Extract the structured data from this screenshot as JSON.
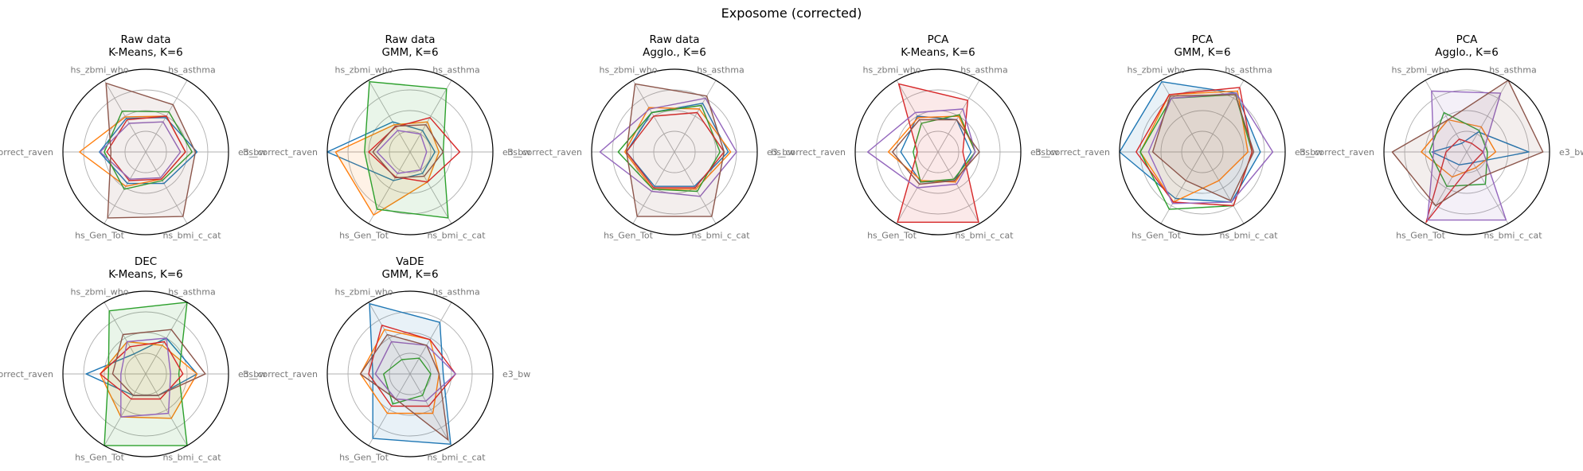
{
  "figure": {
    "title": "Exposome (corrected)",
    "variables": [
      "e3_bw",
      "hs_asthma",
      "hs_zbmi_who",
      "hs_correct_raven",
      "hs_Gen_Tot",
      "hs_bmi_c_cat"
    ],
    "series_colors": [
      "#1f77b4",
      "#ff7f0e",
      "#2ca02c",
      "#d62728",
      "#9467bd",
      "#8c564b"
    ],
    "radial_grid": [
      0.25,
      0.5,
      0.75
    ],
    "radial_limit": 1.0
  },
  "chart_data": [
    {
      "type": "radar",
      "title": "Raw data",
      "subtitle": "K-Means, K=6",
      "series": [
        {
          "values": [
            0.62,
            0.48,
            0.47,
            0.56,
            0.44,
            0.44
          ],
          "filled": false
        },
        {
          "values": [
            0.48,
            0.5,
            0.49,
            0.8,
            0.48,
            0.38
          ],
          "filled": false
        },
        {
          "values": [
            0.56,
            0.56,
            0.57,
            0.5,
            0.52,
            0.4
          ],
          "filled": false
        },
        {
          "values": [
            0.48,
            0.5,
            0.45,
            0.47,
            0.4,
            0.38
          ],
          "filled": false
        },
        {
          "values": [
            0.42,
            0.42,
            0.4,
            0.55,
            0.38,
            0.36
          ],
          "filled": false
        },
        {
          "values": [
            0.6,
            0.66,
            0.96,
            0.42,
            0.92,
            0.9
          ],
          "filled": true
        }
      ]
    },
    {
      "type": "radar",
      "title": "Raw data",
      "subtitle": "GMM, K=6",
      "series": [
        {
          "values": [
            0.3,
            0.3,
            0.42,
            1.0,
            0.4,
            0.3
          ],
          "filled": false
        },
        {
          "values": [
            0.35,
            0.42,
            0.38,
            0.9,
            0.88,
            0.42
          ],
          "filled": true
        },
        {
          "values": [
            0.4,
            0.88,
            0.98,
            0.55,
            0.8,
            0.92
          ],
          "filled": true
        },
        {
          "values": [
            0.6,
            0.48,
            0.35,
            0.5,
            0.35,
            0.42
          ],
          "filled": false
        },
        {
          "values": [
            0.2,
            0.25,
            0.3,
            0.4,
            0.3,
            0.25
          ],
          "filled": false
        },
        {
          "values": [
            0.4,
            0.38,
            0.36,
            0.45,
            0.36,
            0.34
          ],
          "filled": false
        }
      ]
    },
    {
      "type": "radar",
      "title": "Raw data",
      "subtitle": "Agglo., K=6",
      "series": [
        {
          "values": [
            0.65,
            0.68,
            0.55,
            0.58,
            0.48,
            0.48
          ],
          "filled": false
        },
        {
          "values": [
            0.68,
            0.6,
            0.62,
            0.6,
            0.52,
            0.52
          ],
          "filled": false
        },
        {
          "values": [
            0.55,
            0.65,
            0.55,
            0.68,
            0.52,
            0.55
          ],
          "filled": false
        },
        {
          "values": [
            0.6,
            0.55,
            0.5,
            0.58,
            0.5,
            0.5
          ],
          "filled": false
        },
        {
          "values": [
            0.75,
            0.75,
            0.6,
            0.9,
            0.55,
            0.62
          ],
          "filled": false
        },
        {
          "values": [
            0.6,
            0.78,
            0.95,
            0.58,
            0.9,
            0.9
          ],
          "filled": true
        }
      ]
    },
    {
      "type": "radar",
      "title": "PCA",
      "subtitle": "K-Means, K=6",
      "series": [
        {
          "values": [
            0.4,
            0.45,
            0.5,
            0.45,
            0.42,
            0.4
          ],
          "filled": false
        },
        {
          "values": [
            0.45,
            0.5,
            0.48,
            0.6,
            0.4,
            0.42
          ],
          "filled": false
        },
        {
          "values": [
            0.45,
            0.52,
            0.4,
            0.3,
            0.42,
            0.38
          ],
          "filled": false
        },
        {
          "values": [
            0.3,
            0.72,
            0.95,
            0.25,
            0.98,
            0.98
          ],
          "filled": true
        },
        {
          "values": [
            0.45,
            0.6,
            0.55,
            0.85,
            0.5,
            0.45
          ],
          "filled": false
        },
        {
          "values": [
            0.5,
            0.45,
            0.45,
            0.55,
            0.45,
            0.4
          ],
          "filled": false
        }
      ]
    },
    {
      "type": "radar",
      "title": "PCA",
      "subtitle": "GMM, K=6",
      "series": [
        {
          "values": [
            0.7,
            0.82,
            0.98,
            1.0,
            0.65,
            0.7
          ],
          "filled": true
        },
        {
          "values": [
            0.55,
            0.85,
            0.8,
            0.75,
            0.7,
            0.4
          ],
          "filled": true
        },
        {
          "values": [
            0.6,
            0.8,
            0.75,
            0.75,
            0.8,
            0.75
          ],
          "filled": false
        },
        {
          "values": [
            0.6,
            0.9,
            0.8,
            0.8,
            0.7,
            0.75
          ],
          "filled": false
        },
        {
          "values": [
            0.85,
            0.82,
            0.75,
            0.65,
            0.72,
            0.7
          ],
          "filled": false
        },
        {
          "values": [
            0.62,
            0.8,
            0.78,
            0.6,
            0.4,
            0.68
          ],
          "filled": true
        }
      ]
    },
    {
      "type": "radar",
      "title": "PCA",
      "subtitle": "Agglo., K=6",
      "series": [
        {
          "values": [
            0.75,
            0.28,
            0.12,
            0.42,
            0.18,
            0.15
          ],
          "filled": false
        },
        {
          "values": [
            0.35,
            0.35,
            0.45,
            0.55,
            0.35,
            0.22
          ],
          "filled": false
        },
        {
          "values": [
            0.25,
            0.3,
            0.55,
            0.45,
            0.48,
            0.45
          ],
          "filled": false
        },
        {
          "values": [
            0.2,
            0.12,
            0.18,
            0.25,
            0.98,
            0.15
          ],
          "filled": false
        },
        {
          "values": [
            0.2,
            0.82,
            0.85,
            0.4,
            0.95,
            0.95
          ],
          "filled": true
        },
        {
          "values": [
            0.92,
            1.0,
            0.45,
            0.9,
            0.75,
            0.35
          ],
          "filled": true
        }
      ]
    },
    {
      "type": "radar",
      "title": "DEC",
      "subtitle": "K-Means, K=6",
      "series": [
        {
          "values": [
            0.62,
            0.5,
            0.28,
            0.72,
            0.3,
            0.3
          ],
          "filled": false
        },
        {
          "values": [
            0.62,
            0.4,
            0.45,
            0.55,
            0.6,
            0.62
          ],
          "filled": true
        },
        {
          "values": [
            0.4,
            1.0,
            0.88,
            0.45,
            1.0,
            1.0
          ],
          "filled": true
        },
        {
          "values": [
            0.45,
            0.45,
            0.38,
            0.55,
            0.35,
            0.35
          ],
          "filled": false
        },
        {
          "values": [
            0.3,
            0.5,
            0.45,
            0.3,
            0.6,
            0.55
          ],
          "filled": false
        },
        {
          "values": [
            0.72,
            0.62,
            0.55,
            0.4,
            0.3,
            0.3
          ],
          "filled": false
        }
      ]
    },
    {
      "type": "radar",
      "title": "VaDE",
      "subtitle": "GMM, K=6",
      "series": [
        {
          "values": [
            0.4,
            0.72,
            0.98,
            0.45,
            0.9,
            0.98
          ],
          "filled": true
        },
        {
          "values": [
            0.35,
            0.48,
            0.62,
            0.6,
            0.55,
            0.55
          ],
          "filled": false
        },
        {
          "values": [
            0.25,
            0.22,
            0.2,
            0.32,
            0.42,
            0.3
          ],
          "filled": false
        },
        {
          "values": [
            0.55,
            0.48,
            0.68,
            0.5,
            0.45,
            0.45
          ],
          "filled": false
        },
        {
          "values": [
            0.55,
            0.4,
            0.45,
            0.42,
            0.35,
            0.38
          ],
          "filled": false
        },
        {
          "values": [
            0.35,
            0.4,
            0.55,
            0.6,
            0.35,
            0.92
          ],
          "filled": true
        }
      ]
    }
  ]
}
